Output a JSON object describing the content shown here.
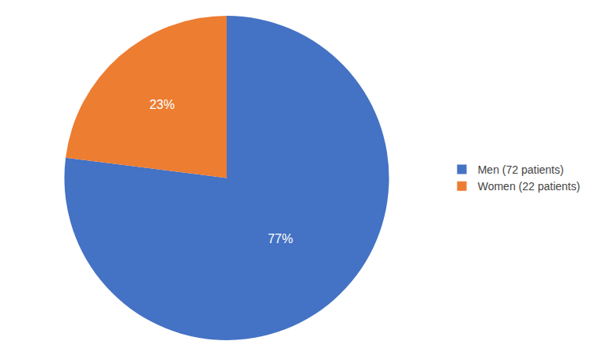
{
  "chart_data": {
    "type": "pie",
    "categories": [
      "Men (72 patients)",
      "Women (22 patients)"
    ],
    "values": [
      77,
      23
    ],
    "value_labels": [
      "77%",
      "23%"
    ],
    "colors": [
      "#4472C4",
      "#ED7D31"
    ],
    "data_labels": true,
    "legend": "right"
  }
}
